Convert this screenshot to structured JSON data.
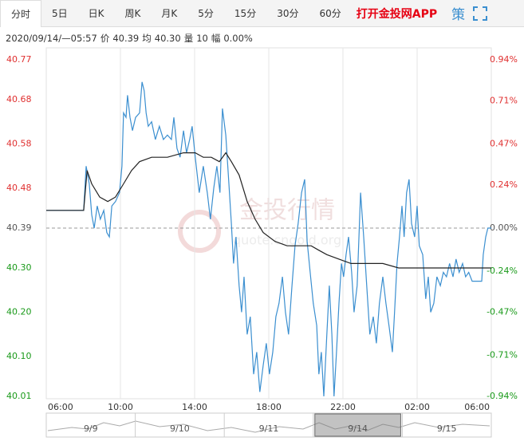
{
  "tabs": [
    "分时",
    "5日",
    "日K",
    "周K",
    "月K",
    "5分",
    "15分",
    "30分",
    "60分"
  ],
  "selected_tab": 0,
  "app_link": "打开金投网APP",
  "strategy": "策",
  "info": {
    "datetime": "2020/09/14/—05:57",
    "items": [
      {
        "label": "价",
        "value": "40.39"
      },
      {
        "label": "均",
        "value": "40.30"
      },
      {
        "label": "量",
        "value": "10"
      },
      {
        "label": "幅",
        "value": "0.00%"
      }
    ]
  },
  "watermark": {
    "title": "金投行情",
    "url": "quote.cngold.org"
  },
  "chart_data": {
    "type": "line",
    "xlim": [
      0,
      1440
    ],
    "xticks": [
      {
        "value": 0,
        "label": "06:00"
      },
      {
        "value": 240,
        "label": "10:00"
      },
      {
        "value": 480,
        "label": "14:00"
      },
      {
        "value": 720,
        "label": "18:00"
      },
      {
        "value": 960,
        "label": "22:00"
      },
      {
        "value": 1200,
        "label": "02:00"
      },
      {
        "value": 1440,
        "label": "06:00"
      }
    ],
    "ylim": [
      40.01,
      40.77
    ],
    "yticks": [
      40.77,
      40.68,
      40.58,
      40.48,
      40.39,
      {
        "value": 40.3,
        "label": "40.30"
      },
      {
        "value": 40.2,
        "label": "40.20"
      },
      {
        "value": 40.1,
        "label": "40.10"
      },
      40.01
    ],
    "y2lim": [
      -0.94,
      0.94
    ],
    "y2ticks": [
      {
        "value": 0.94,
        "label": "0.94%"
      },
      {
        "value": 0.71,
        "label": "0.71%"
      },
      {
        "value": 0.47,
        "label": "0.47%"
      },
      {
        "value": 0.24,
        "label": "0.24%"
      },
      {
        "value": 0,
        "label": "0.00%"
      },
      {
        "value": -0.24,
        "label": "-0.24%"
      },
      {
        "value": -0.47,
        "label": "-0.47%"
      },
      {
        "value": -0.71,
        "label": "-0.71%"
      },
      {
        "value": -0.94,
        "label": "-0.94%"
      }
    ],
    "reference": 40.39,
    "grid": "x",
    "up_color": "#e03030",
    "down_color": "#1a9a1a",
    "flat_color": "#555555",
    "series": [
      {
        "color": "#3b8fd0",
        "x": [
          0,
          121,
          129,
          139,
          147,
          155,
          165,
          175,
          186,
          196,
          204,
          212,
          224,
          237,
          245,
          250,
          258,
          263,
          271,
          279,
          289,
          302,
          310,
          317,
          323,
          330,
          341,
          353,
          366,
          379,
          392,
          405,
          413,
          423,
          433,
          444,
          454,
          464,
          472,
          482,
          495,
          508,
          521,
          531,
          542,
          552,
          562,
          570,
          581,
          591,
          599,
          606,
          614,
          624,
          632,
          640,
          650,
          660,
          671,
          681,
          691,
          702,
          712,
          722,
          733,
          743,
          753,
          764,
          774,
          784,
          795,
          805,
          815,
          826,
          836,
          844,
          854,
          864,
          875,
          882,
          890,
          898,
          908,
          916,
          924,
          931,
          939,
          947,
          955,
          962,
          970,
          978,
          988,
          996,
          1006,
          1017,
          1027,
          1037,
          1047,
          1058,
          1068,
          1078,
          1089,
          1099,
          1109,
          1120,
          1127,
          1135,
          1143,
          1151,
          1158,
          1166,
          1174,
          1182,
          1192,
          1200,
          1207,
          1218,
          1228,
          1236,
          1244,
          1254,
          1264,
          1275,
          1285,
          1295,
          1305,
          1316,
          1326,
          1336,
          1347,
          1357,
          1367,
          1378,
          1398,
          1409,
          1414,
          1422,
          1429,
          1440
        ],
        "values": [
          40.43,
          40.43,
          40.53,
          40.49,
          40.42,
          40.39,
          40.44,
          40.41,
          40.43,
          40.38,
          40.37,
          40.44,
          40.45,
          40.47,
          40.53,
          40.65,
          40.64,
          40.69,
          40.64,
          40.61,
          40.64,
          40.65,
          40.72,
          40.7,
          40.65,
          40.62,
          40.63,
          40.59,
          40.62,
          40.59,
          40.6,
          40.59,
          40.64,
          40.57,
          40.55,
          40.61,
          40.56,
          40.59,
          40.62,
          40.55,
          40.47,
          40.53,
          40.47,
          40.41,
          40.48,
          40.53,
          40.47,
          40.66,
          40.6,
          40.49,
          40.4,
          40.31,
          40.37,
          40.26,
          40.2,
          40.28,
          40.15,
          40.19,
          40.06,
          40.11,
          40.02,
          40.08,
          40.13,
          40.06,
          40.11,
          40.19,
          40.22,
          40.28,
          40.2,
          40.15,
          40.26,
          40.35,
          40.4,
          40.47,
          40.5,
          40.36,
          40.29,
          40.22,
          40.17,
          40.06,
          40.11,
          40.01,
          40.15,
          40.26,
          40.15,
          40.01,
          40.11,
          40.22,
          40.31,
          40.28,
          40.33,
          40.37,
          40.29,
          40.2,
          40.26,
          40.47,
          40.37,
          40.26,
          40.15,
          40.19,
          40.13,
          40.22,
          40.28,
          40.22,
          40.17,
          40.11,
          40.2,
          40.31,
          40.37,
          40.44,
          40.37,
          40.47,
          40.5,
          40.4,
          40.37,
          40.44,
          40.35,
          40.33,
          40.23,
          40.28,
          40.2,
          40.22,
          40.28,
          40.26,
          40.29,
          40.28,
          40.31,
          40.28,
          40.32,
          40.29,
          40.31,
          40.28,
          40.29,
          40.27,
          40.27,
          40.27,
          40.33,
          40.37,
          40.39,
          40.39
        ]
      },
      {
        "color": "#222222",
        "x": [
          0,
          121,
          132,
          147,
          173,
          199,
          224,
          250,
          276,
          302,
          341,
          392,
          444,
          482,
          508,
          534,
          560,
          581,
          599,
          624,
          650,
          676,
          702,
          740,
          779,
          818,
          857,
          882,
          908,
          947,
          986,
          1037,
          1089,
          1140,
          1192,
          1243,
          1295,
          1347,
          1440
        ],
        "values": [
          40.43,
          40.43,
          40.52,
          40.49,
          40.46,
          40.45,
          40.46,
          40.49,
          40.52,
          40.54,
          40.55,
          40.55,
          40.56,
          40.56,
          40.55,
          40.55,
          40.54,
          40.56,
          40.54,
          40.51,
          40.45,
          40.41,
          40.38,
          40.36,
          40.35,
          40.35,
          40.35,
          40.34,
          40.33,
          40.32,
          40.31,
          40.31,
          40.31,
          40.3,
          40.3,
          40.3,
          40.3,
          40.3,
          40.3
        ]
      }
    ]
  },
  "navigator": {
    "labels": [
      "9/9",
      "9/10",
      "9/11",
      "9/14",
      "9/15"
    ],
    "selected_index": 3
  }
}
